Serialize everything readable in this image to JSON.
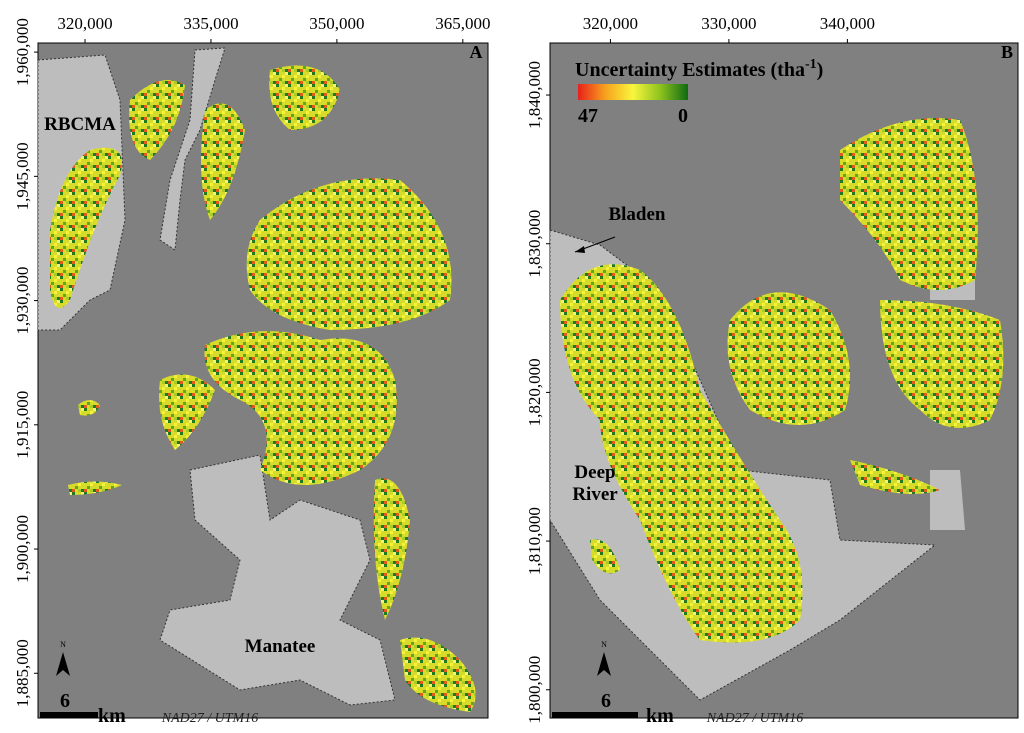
{
  "panels": [
    {
      "letter": "A",
      "xlim": [
        314400,
        368000
      ],
      "ylim": [
        1879600,
        1961100
      ],
      "xticks": [
        {
          "value": 320000,
          "label": "320,000"
        },
        {
          "value": 335000,
          "label": "335,000"
        },
        {
          "value": 350000,
          "label": "350,000"
        },
        {
          "value": 365000,
          "label": "365,000"
        }
      ],
      "yticks": [
        {
          "value": 1885000,
          "label": "1,885,000"
        },
        {
          "value": 1900000,
          "label": "1,900,000"
        },
        {
          "value": 1915000,
          "label": "1,915,000"
        },
        {
          "value": 1930000,
          "label": "1,930,000"
        },
        {
          "value": 1945000,
          "label": "1,945,000"
        },
        {
          "value": 1960000,
          "label": "1,960,000"
        }
      ],
      "places": [
        "RBCMA",
        "Manatee"
      ],
      "north": "N",
      "scale": "6",
      "scale_unit": "km",
      "projection": "NAD27 / UTM16"
    },
    {
      "letter": "B",
      "xlim": [
        314900,
        354400
      ],
      "ylim": [
        1798100,
        1843500
      ],
      "xticks": [
        {
          "value": 320000,
          "label": "320,000"
        },
        {
          "value": 330000,
          "label": "330,000"
        },
        {
          "value": 340000,
          "label": "340,000"
        }
      ],
      "yticks": [
        {
          "value": 1800000,
          "label": "1,800,000"
        },
        {
          "value": 1810000,
          "label": "1,810,000"
        },
        {
          "value": 1820000,
          "label": "1,820,000"
        },
        {
          "value": 1830000,
          "label": "1,830,000"
        },
        {
          "value": 1840000,
          "label": "1,840,000"
        }
      ],
      "places": [
        "Bladen",
        "Deep River"
      ],
      "north": "N",
      "scale": "6",
      "scale_unit": "km",
      "projection": "NAD27 / UTM16"
    }
  ],
  "legend": {
    "title": "Uncertainty Estimates (tha",
    "title_superscript": "-1",
    "title_end": ")",
    "high": 47,
    "low": 0
  }
}
